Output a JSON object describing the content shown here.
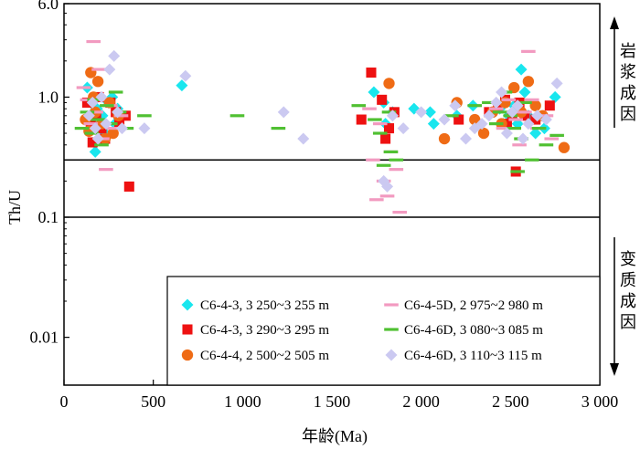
{
  "chart_data": {
    "type": "scatter",
    "title": "",
    "xlabel": "年龄(Ma)",
    "ylabel": "Th/U",
    "xlim": [
      0,
      3000
    ],
    "ylim": [
      0.004,
      6.0
    ],
    "y_scale": "log",
    "x_ticks": [
      0,
      500,
      1000,
      1500,
      2000,
      2500,
      3000
    ],
    "x_tick_labels": [
      "0",
      "500",
      "1 000",
      "1 500",
      "2 000",
      "2 500",
      "3 000"
    ],
    "y_ticks": [
      0.01,
      0.1,
      1.0,
      6.0
    ],
    "y_tick_labels": [
      "0.01",
      "0.1",
      "1.0",
      "6.0"
    ],
    "reference_lines": [
      {
        "y": 0.3,
        "orientation": "horizontal"
      },
      {
        "y": 0.1,
        "orientation": "horizontal"
      }
    ],
    "zones": [
      {
        "label": "岩浆成因",
        "range": "Th/U > 0.3"
      },
      {
        "label": "变质成因",
        "range": "Th/U < 0.3"
      }
    ],
    "legend_position": "bottom-right",
    "series": [
      {
        "name": "C6-4-3, 3 250~3 255 m",
        "marker": "diamond",
        "color": "#19e6ee",
        "points": [
          [
            130,
            1.2
          ],
          [
            150,
            0.9
          ],
          [
            160,
            0.55
          ],
          [
            175,
            0.35
          ],
          [
            185,
            0.8
          ],
          [
            200,
            0.6
          ],
          [
            215,
            0.7
          ],
          [
            230,
            0.5
          ],
          [
            250,
            0.9
          ],
          [
            270,
            1.0
          ],
          [
            285,
            0.6
          ],
          [
            300,
            0.8
          ],
          [
            660,
            1.25
          ],
          [
            1735,
            1.1
          ],
          [
            1790,
            0.9
          ],
          [
            1800,
            0.6
          ],
          [
            1840,
            0.75
          ],
          [
            1960,
            0.8
          ],
          [
            2050,
            0.75
          ],
          [
            2070,
            0.6
          ],
          [
            2200,
            0.7
          ],
          [
            2290,
            0.85
          ],
          [
            2440,
            0.8
          ],
          [
            2460,
            0.6
          ],
          [
            2490,
            0.7
          ],
          [
            2520,
            0.85
          ],
          [
            2540,
            0.6
          ],
          [
            2560,
            1.7
          ],
          [
            2580,
            1.1
          ],
          [
            2600,
            0.7
          ],
          [
            2640,
            0.5
          ],
          [
            2690,
            0.55
          ],
          [
            2750,
            1.0
          ]
        ]
      },
      {
        "name": "C6-4-3, 3 290~3 295 m",
        "marker": "square",
        "color": "#ee1111",
        "points": [
          [
            130,
            0.9
          ],
          [
            150,
            0.6
          ],
          [
            160,
            0.42
          ],
          [
            180,
            0.7
          ],
          [
            195,
            1.0
          ],
          [
            210,
            0.55
          ],
          [
            230,
            0.45
          ],
          [
            260,
            0.9
          ],
          [
            290,
            0.75
          ],
          [
            310,
            0.6
          ],
          [
            345,
            0.7
          ],
          [
            365,
            0.18
          ],
          [
            1665,
            0.65
          ],
          [
            1720,
            1.6
          ],
          [
            1780,
            0.95
          ],
          [
            1800,
            0.45
          ],
          [
            1820,
            0.55
          ],
          [
            1850,
            0.75
          ],
          [
            2210,
            0.65
          ],
          [
            2380,
            0.75
          ],
          [
            2430,
            0.85
          ],
          [
            2470,
            0.95
          ],
          [
            2480,
            0.6
          ],
          [
            2510,
            0.7
          ],
          [
            2530,
            0.24
          ],
          [
            2550,
            0.9
          ],
          [
            2580,
            0.7
          ],
          [
            2640,
            0.65
          ],
          [
            2720,
            0.85
          ]
        ]
      },
      {
        "name": "C6-4-4, 2 500~2 505 m",
        "marker": "circle",
        "color": "#ef6b15",
        "points": [
          [
            120,
            0.65
          ],
          [
            140,
            0.52
          ],
          [
            150,
            1.6
          ],
          [
            165,
            1.0
          ],
          [
            175,
            0.75
          ],
          [
            190,
            1.35
          ],
          [
            210,
            0.6
          ],
          [
            230,
            0.45
          ],
          [
            255,
            0.9
          ],
          [
            275,
            0.5
          ],
          [
            305,
            0.7
          ],
          [
            1820,
            1.3
          ],
          [
            2130,
            0.45
          ],
          [
            2200,
            0.9
          ],
          [
            2300,
            0.65
          ],
          [
            2350,
            0.5
          ],
          [
            2400,
            0.75
          ],
          [
            2450,
            0.6
          ],
          [
            2470,
            0.9
          ],
          [
            2520,
            1.2
          ],
          [
            2560,
            0.75
          ],
          [
            2600,
            1.35
          ],
          [
            2640,
            0.85
          ],
          [
            2680,
            0.7
          ],
          [
            2800,
            0.38
          ]
        ]
      },
      {
        "name": "C6-4-5D, 2 975~2 980 m",
        "marker": "dash",
        "color": "#f29ac0",
        "points": [
          [
            110,
            1.2
          ],
          [
            130,
            0.95
          ],
          [
            150,
            0.6
          ],
          [
            165,
            2.9
          ],
          [
            180,
            0.75
          ],
          [
            195,
            1.7
          ],
          [
            215,
            0.45
          ],
          [
            235,
            0.25
          ],
          [
            260,
            0.85
          ],
          [
            280,
            0.55
          ],
          [
            320,
            0.7
          ],
          [
            1710,
            0.8
          ],
          [
            1730,
            0.3
          ],
          [
            1750,
            0.14
          ],
          [
            1770,
            0.6
          ],
          [
            1790,
            0.2
          ],
          [
            1810,
            0.15
          ],
          [
            1830,
            0.35
          ],
          [
            1860,
            0.25
          ],
          [
            1880,
            0.11
          ],
          [
            2420,
            0.8
          ],
          [
            2460,
            0.55
          ],
          [
            2490,
            0.95
          ],
          [
            2530,
            0.65
          ],
          [
            2550,
            0.4
          ],
          [
            2580,
            0.75
          ],
          [
            2600,
            2.4
          ],
          [
            2620,
            0.95
          ],
          [
            2650,
            0.55
          ],
          [
            2700,
            0.7
          ],
          [
            2730,
            0.45
          ]
        ]
      },
      {
        "name": "C6-4-6D, 3 080~3 085 m",
        "marker": "dash",
        "color": "#50c032",
        "points": [
          [
            100,
            0.55
          ],
          [
            130,
            0.75
          ],
          [
            155,
            0.5
          ],
          [
            170,
            0.95
          ],
          [
            190,
            0.65
          ],
          [
            210,
            0.4
          ],
          [
            240,
            0.85
          ],
          [
            260,
            0.6
          ],
          [
            290,
            1.1
          ],
          [
            310,
            0.75
          ],
          [
            350,
            0.55
          ],
          [
            450,
            0.7
          ],
          [
            970,
            0.7
          ],
          [
            1200,
            0.55
          ],
          [
            1650,
            0.85
          ],
          [
            1740,
            0.65
          ],
          [
            1770,
            0.5
          ],
          [
            1790,
            0.27
          ],
          [
            1820,
            0.75
          ],
          [
            1830,
            0.35
          ],
          [
            1860,
            0.3
          ],
          [
            2170,
            0.7
          ],
          [
            2300,
            0.85
          ],
          [
            2380,
            0.9
          ],
          [
            2420,
            0.6
          ],
          [
            2440,
            0.75
          ],
          [
            2470,
            1.1
          ],
          [
            2500,
            0.7
          ],
          [
            2520,
            0.55
          ],
          [
            2540,
            0.24
          ],
          [
            2560,
            0.45
          ],
          [
            2580,
            0.9
          ],
          [
            2620,
            0.3
          ],
          [
            2660,
            0.55
          ],
          [
            2700,
            0.4
          ],
          [
            2760,
            0.48
          ]
        ]
      },
      {
        "name": "C6-4-6D, 3 110~3 115 m",
        "marker": "diamond",
        "color": "#cbc9f1",
        "points": [
          [
            140,
            0.7
          ],
          [
            160,
            0.9
          ],
          [
            175,
            0.55
          ],
          [
            190,
            0.45
          ],
          [
            210,
            1.0
          ],
          [
            235,
            0.6
          ],
          [
            255,
            1.7
          ],
          [
            280,
            2.2
          ],
          [
            300,
            0.75
          ],
          [
            325,
            0.55
          ],
          [
            450,
            0.55
          ],
          [
            680,
            1.5
          ],
          [
            1230,
            0.75
          ],
          [
            1340,
            0.45
          ],
          [
            1790,
            0.2
          ],
          [
            1810,
            0.18
          ],
          [
            1840,
            0.7
          ],
          [
            1900,
            0.55
          ],
          [
            2000,
            0.75
          ],
          [
            2130,
            0.65
          ],
          [
            2190,
            0.85
          ],
          [
            2250,
            0.45
          ],
          [
            2300,
            0.55
          ],
          [
            2340,
            0.6
          ],
          [
            2380,
            0.7
          ],
          [
            2420,
            0.9
          ],
          [
            2450,
            1.1
          ],
          [
            2480,
            0.5
          ],
          [
            2510,
            0.75
          ],
          [
            2540,
            0.85
          ],
          [
            2570,
            0.45
          ],
          [
            2600,
            0.6
          ],
          [
            2650,
            0.7
          ],
          [
            2700,
            0.65
          ],
          [
            2760,
            1.3
          ]
        ]
      }
    ]
  }
}
